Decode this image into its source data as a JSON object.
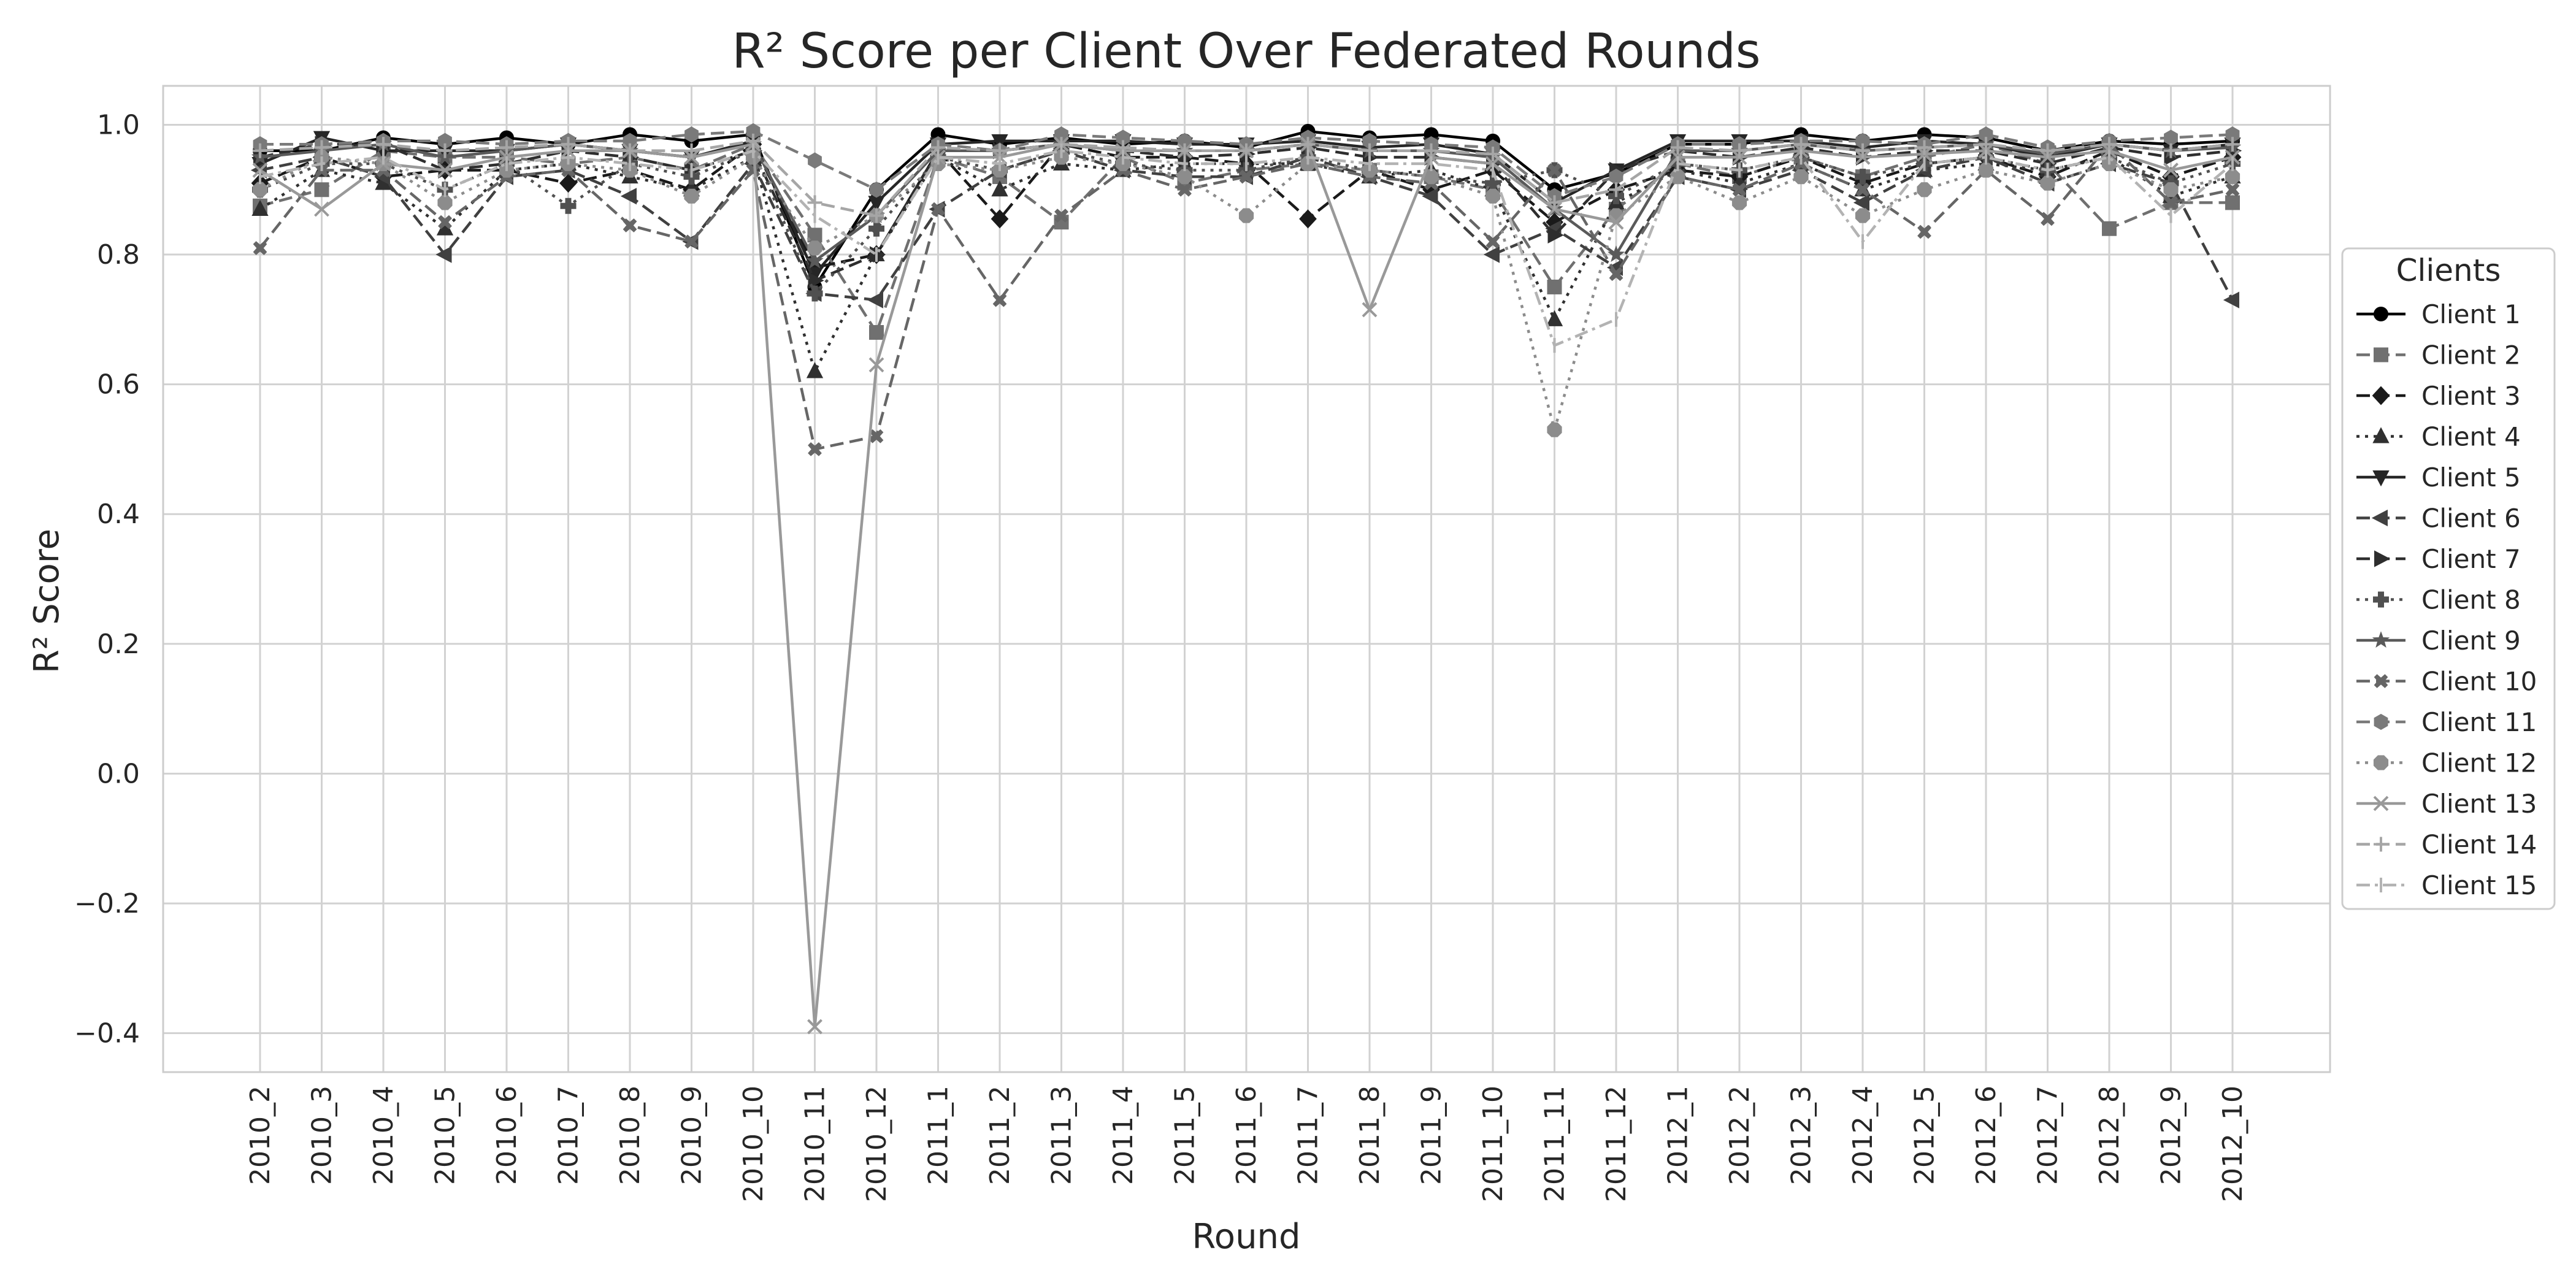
{
  "chart_data": {
    "type": "line",
    "title": "R² Score per Client Over Federated Rounds",
    "xlabel": "Round",
    "ylabel": "R² Score",
    "ylim": [
      -0.46,
      1.06
    ],
    "yticks": [
      -0.4,
      -0.2,
      0.0,
      0.2,
      0.4,
      0.6,
      0.8,
      1.0
    ],
    "ytick_labels": [
      "−0.4",
      "−0.2",
      "0.0",
      "0.2",
      "0.4",
      "0.6",
      "0.8",
      "1.0"
    ],
    "grid": true,
    "legend_title": "Clients",
    "legend_position": "right, outside plot",
    "categories": [
      "2010_2",
      "2010_3",
      "2010_4",
      "2010_5",
      "2010_6",
      "2010_7",
      "2010_8",
      "2010_9",
      "2010_10",
      "2010_11",
      "2010_12",
      "2011_1",
      "2011_2",
      "2011_3",
      "2011_4",
      "2011_5",
      "2011_6",
      "2011_7",
      "2011_8",
      "2011_9",
      "2011_10",
      "2011_11",
      "2011_12",
      "2012_1",
      "2012_2",
      "2012_3",
      "2012_4",
      "2012_5",
      "2012_6",
      "2012_7",
      "2012_8",
      "2012_9",
      "2012_10"
    ],
    "series": [
      {
        "name": "Client 1",
        "color": "#000000",
        "dash": "solid",
        "marker": "circle",
        "values": [
          0.96,
          0.96,
          0.98,
          0.97,
          0.98,
          0.97,
          0.985,
          0.975,
          0.985,
          0.75,
          0.9,
          0.985,
          0.97,
          0.98,
          0.97,
          0.975,
          0.965,
          0.99,
          0.98,
          0.985,
          0.975,
          0.9,
          0.925,
          0.97,
          0.97,
          0.985,
          0.975,
          0.985,
          0.98,
          0.96,
          0.975,
          0.97,
          0.975
        ]
      },
      {
        "name": "Client 2",
        "color": "#707070",
        "dash": "dash",
        "marker": "square",
        "values": [
          0.875,
          0.9,
          0.96,
          0.95,
          0.95,
          0.94,
          0.95,
          0.93,
          0.97,
          0.83,
          0.68,
          0.95,
          0.92,
          0.85,
          0.95,
          0.91,
          0.93,
          0.94,
          0.93,
          0.92,
          0.9,
          0.75,
          0.87,
          0.94,
          0.92,
          0.95,
          0.92,
          0.95,
          0.97,
          0.94,
          0.84,
          0.88,
          0.88
        ]
      },
      {
        "name": "Client 3",
        "color": "#1a1a1a",
        "dash": "dash",
        "marker": "diamond",
        "values": [
          0.91,
          0.95,
          0.92,
          0.93,
          0.93,
          0.91,
          0.93,
          0.9,
          0.97,
          0.78,
          0.8,
          0.96,
          0.855,
          0.97,
          0.95,
          0.95,
          0.94,
          0.855,
          0.93,
          0.9,
          0.93,
          0.85,
          0.9,
          0.93,
          0.92,
          0.95,
          0.91,
          0.94,
          0.95,
          0.92,
          0.96,
          0.92,
          0.95
        ]
      },
      {
        "name": "Client 4",
        "color": "#303030",
        "dash": "dot",
        "marker": "triangle-up",
        "values": [
          0.87,
          0.93,
          0.91,
          0.84,
          0.93,
          0.94,
          0.92,
          0.9,
          0.95,
          0.62,
          0.8,
          0.95,
          0.9,
          0.94,
          0.93,
          0.94,
          0.94,
          0.94,
          0.92,
          0.93,
          0.9,
          0.7,
          0.88,
          0.93,
          0.91,
          0.94,
          0.9,
          0.93,
          0.94,
          0.93,
          0.95,
          0.89,
          0.92
        ]
      },
      {
        "name": "Client 5",
        "color": "#262626",
        "dash": "solid",
        "marker": "triangle-down",
        "values": [
          0.94,
          0.98,
          0.96,
          0.96,
          0.96,
          0.97,
          0.96,
          0.95,
          0.975,
          0.77,
          0.88,
          0.97,
          0.975,
          0.975,
          0.975,
          0.97,
          0.97,
          0.975,
          0.965,
          0.97,
          0.955,
          0.88,
          0.93,
          0.975,
          0.975,
          0.975,
          0.965,
          0.975,
          0.97,
          0.95,
          0.97,
          0.96,
          0.97
        ]
      },
      {
        "name": "Client 6",
        "color": "#404040",
        "dash": "dash",
        "marker": "triangle-left",
        "values": [
          0.93,
          0.95,
          0.92,
          0.8,
          0.92,
          0.93,
          0.89,
          0.82,
          0.94,
          0.74,
          0.73,
          0.87,
          0.93,
          0.96,
          0.93,
          0.92,
          0.92,
          0.95,
          0.92,
          0.89,
          0.8,
          0.84,
          0.78,
          0.92,
          0.9,
          0.93,
          0.88,
          0.93,
          0.95,
          0.91,
          0.94,
          0.91,
          0.73
        ]
      },
      {
        "name": "Client 7",
        "color": "#2e2e2e",
        "dash": "dash",
        "marker": "triangle-right",
        "values": [
          0.95,
          0.97,
          0.97,
          0.93,
          0.94,
          0.96,
          0.95,
          0.93,
          0.96,
          0.76,
          0.8,
          0.96,
          0.96,
          0.97,
          0.96,
          0.95,
          0.955,
          0.965,
          0.95,
          0.95,
          0.94,
          0.83,
          0.93,
          0.96,
          0.95,
          0.965,
          0.95,
          0.96,
          0.96,
          0.94,
          0.965,
          0.95,
          0.96
        ]
      },
      {
        "name": "Client 8",
        "color": "#505050",
        "dash": "dot",
        "marker": "plus",
        "values": [
          0.9,
          0.94,
          0.94,
          0.9,
          0.94,
          0.875,
          0.94,
          0.92,
          0.96,
          0.74,
          0.84,
          0.95,
          0.93,
          0.96,
          0.94,
          0.93,
          0.93,
          0.95,
          0.93,
          0.92,
          0.91,
          0.93,
          0.89,
          0.94,
          0.93,
          0.95,
          0.92,
          0.94,
          0.95,
          0.93,
          0.95,
          0.91,
          0.94
        ]
      },
      {
        "name": "Client 9",
        "color": "#5a5a5a",
        "dash": "solid",
        "marker": "star",
        "values": [
          0.95,
          0.96,
          0.97,
          0.95,
          0.96,
          0.97,
          0.96,
          0.95,
          0.97,
          0.79,
          0.86,
          0.96,
          0.96,
          0.97,
          0.96,
          0.96,
          0.96,
          0.97,
          0.96,
          0.96,
          0.95,
          0.87,
          0.8,
          0.96,
          0.96,
          0.97,
          0.96,
          0.965,
          0.97,
          0.955,
          0.97,
          0.96,
          0.965
        ]
      },
      {
        "name": "Client 10",
        "color": "#666666",
        "dash": "dash",
        "marker": "x",
        "values": [
          0.81,
          0.93,
          0.93,
          0.85,
          0.92,
          0.93,
          0.845,
          0.82,
          0.93,
          0.5,
          0.52,
          0.87,
          0.73,
          0.86,
          0.93,
          0.9,
          0.92,
          0.94,
          0.92,
          0.91,
          0.82,
          0.93,
          0.77,
          0.92,
          0.9,
          0.94,
          0.9,
          0.835,
          0.93,
          0.855,
          0.97,
          0.88,
          0.9
        ]
      },
      {
        "name": "Client 11",
        "color": "#7a7a7a",
        "dash": "dash",
        "marker": "hexagon",
        "values": [
          0.97,
          0.97,
          0.975,
          0.975,
          0.97,
          0.975,
          0.975,
          0.985,
          0.99,
          0.945,
          0.9,
          0.97,
          0.96,
          0.985,
          0.98,
          0.975,
          0.97,
          0.98,
          0.975,
          0.97,
          0.965,
          0.89,
          0.92,
          0.97,
          0.97,
          0.975,
          0.975,
          0.97,
          0.985,
          0.965,
          0.975,
          0.98,
          0.985
        ]
      },
      {
        "name": "Client 12",
        "color": "#8c8c8c",
        "dash": "dot",
        "marker": "octagon",
        "values": [
          0.9,
          0.95,
          0.94,
          0.88,
          0.93,
          0.94,
          0.93,
          0.89,
          0.95,
          0.81,
          0.86,
          0.94,
          0.93,
          0.95,
          0.94,
          0.92,
          0.86,
          0.94,
          0.93,
          0.92,
          0.89,
          0.53,
          0.86,
          0.92,
          0.88,
          0.92,
          0.86,
          0.9,
          0.93,
          0.91,
          0.94,
          0.9,
          0.92
        ]
      },
      {
        "name": "Client 13",
        "color": "#999999",
        "dash": "solid",
        "marker": "x-cross",
        "values": [
          0.93,
          0.87,
          0.94,
          0.93,
          0.95,
          0.96,
          0.96,
          0.95,
          0.97,
          -0.39,
          0.63,
          0.95,
          0.95,
          0.97,
          0.96,
          0.96,
          0.96,
          0.97,
          0.715,
          0.95,
          0.94,
          0.87,
          0.85,
          0.95,
          0.95,
          0.96,
          0.95,
          0.955,
          0.96,
          0.95,
          0.96,
          0.93,
          0.95
        ]
      },
      {
        "name": "Client 14",
        "color": "#a6a6a6",
        "dash": "dash",
        "marker": "plus-thin",
        "values": [
          0.96,
          0.965,
          0.97,
          0.96,
          0.965,
          0.97,
          0.96,
          0.96,
          0.975,
          0.88,
          0.86,
          0.965,
          0.96,
          0.97,
          0.965,
          0.96,
          0.96,
          0.97,
          0.96,
          0.96,
          0.955,
          0.88,
          0.9,
          0.965,
          0.96,
          0.97,
          0.96,
          0.965,
          0.97,
          0.96,
          0.97,
          0.96,
          0.97
        ]
      },
      {
        "name": "Client 15",
        "color": "#b3b3b3",
        "dash": "dashdot",
        "marker": "vline",
        "values": [
          0.92,
          0.94,
          0.95,
          0.9,
          0.94,
          0.95,
          0.94,
          0.93,
          0.96,
          0.86,
          0.8,
          0.95,
          0.94,
          0.96,
          0.95,
          0.94,
          0.94,
          0.95,
          0.94,
          0.94,
          0.93,
          0.66,
          0.7,
          0.94,
          0.93,
          0.95,
          0.82,
          0.94,
          0.95,
          0.93,
          0.95,
          0.86,
          0.94
        ]
      }
    ]
  }
}
